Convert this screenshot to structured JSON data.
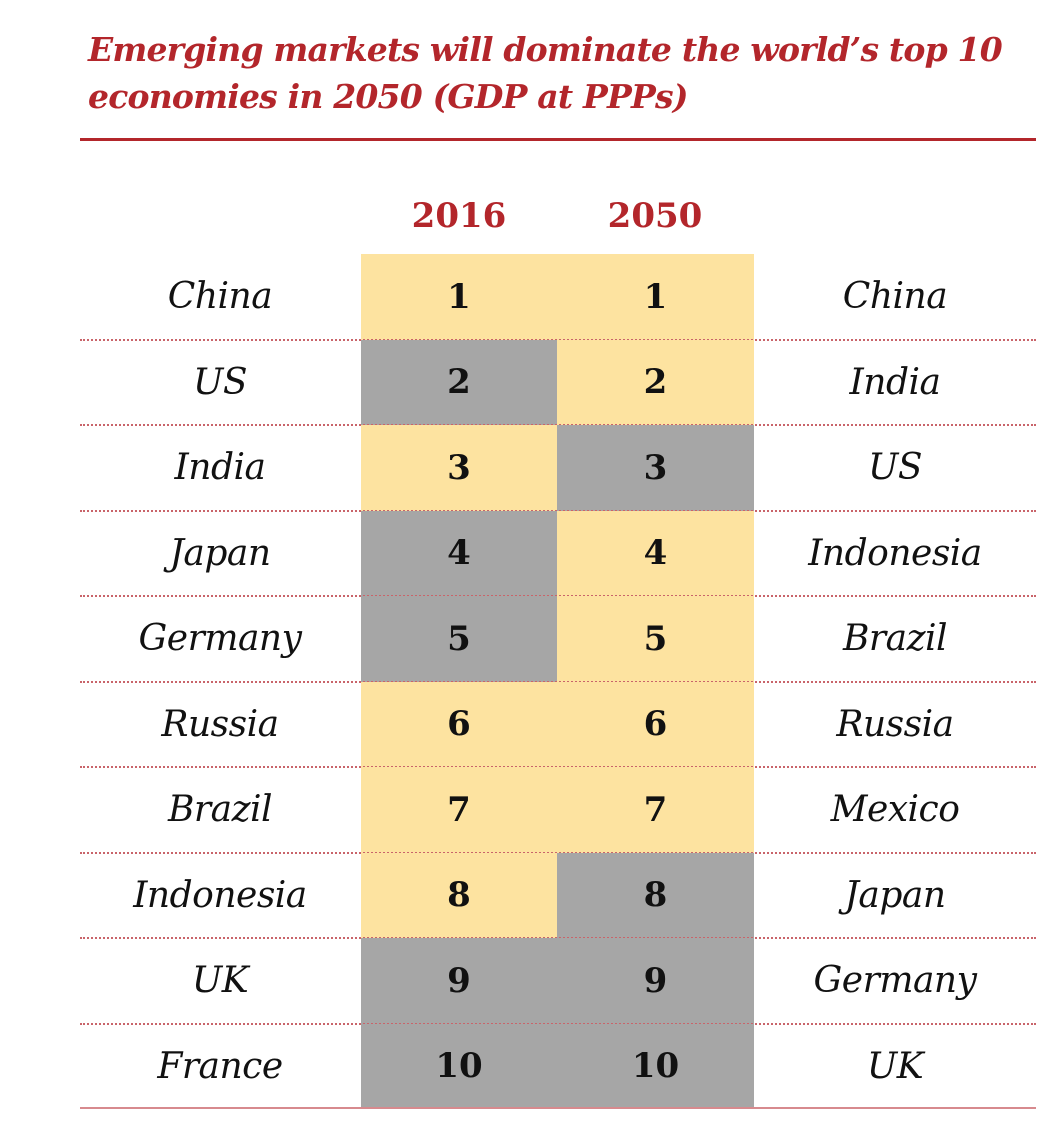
{
  "title": "Emerging markets will dominate the world’s top 10 economies in 2050 (GDP at PPPs)",
  "colors": {
    "accent": "#b3262b",
    "emerging": "#fde3a0",
    "advanced": "#a6a6a6",
    "divider": "#c9646a"
  },
  "chart_data": {
    "type": "table",
    "title": "Emerging markets will dominate the world’s top 10 economies in 2050 (GDP at PPPs)",
    "columns": [
      "2016",
      "2050"
    ],
    "rows": [
      {
        "rank": "1",
        "country_2016": "China",
        "group_2016": "emerging",
        "country_2050": "China",
        "group_2050": "emerging"
      },
      {
        "rank": "2",
        "country_2016": "US",
        "group_2016": "advanced",
        "country_2050": "India",
        "group_2050": "emerging"
      },
      {
        "rank": "3",
        "country_2016": "India",
        "group_2016": "emerging",
        "country_2050": "US",
        "group_2050": "advanced"
      },
      {
        "rank": "4",
        "country_2016": "Japan",
        "group_2016": "advanced",
        "country_2050": "Indonesia",
        "group_2050": "emerging"
      },
      {
        "rank": "5",
        "country_2016": "Germany",
        "group_2016": "advanced",
        "country_2050": "Brazil",
        "group_2050": "emerging"
      },
      {
        "rank": "6",
        "country_2016": "Russia",
        "group_2016": "emerging",
        "country_2050": "Russia",
        "group_2050": "emerging"
      },
      {
        "rank": "7",
        "country_2016": "Brazil",
        "group_2016": "emerging",
        "country_2050": "Mexico",
        "group_2050": "emerging"
      },
      {
        "rank": "8",
        "country_2016": "Indonesia",
        "group_2016": "emerging",
        "country_2050": "Japan",
        "group_2050": "advanced"
      },
      {
        "rank": "9",
        "country_2016": "UK",
        "group_2016": "advanced",
        "country_2050": "Germany",
        "group_2050": "advanced"
      },
      {
        "rank": "10",
        "country_2016": "France",
        "group_2016": "advanced",
        "country_2050": "UK",
        "group_2050": "advanced"
      }
    ]
  }
}
